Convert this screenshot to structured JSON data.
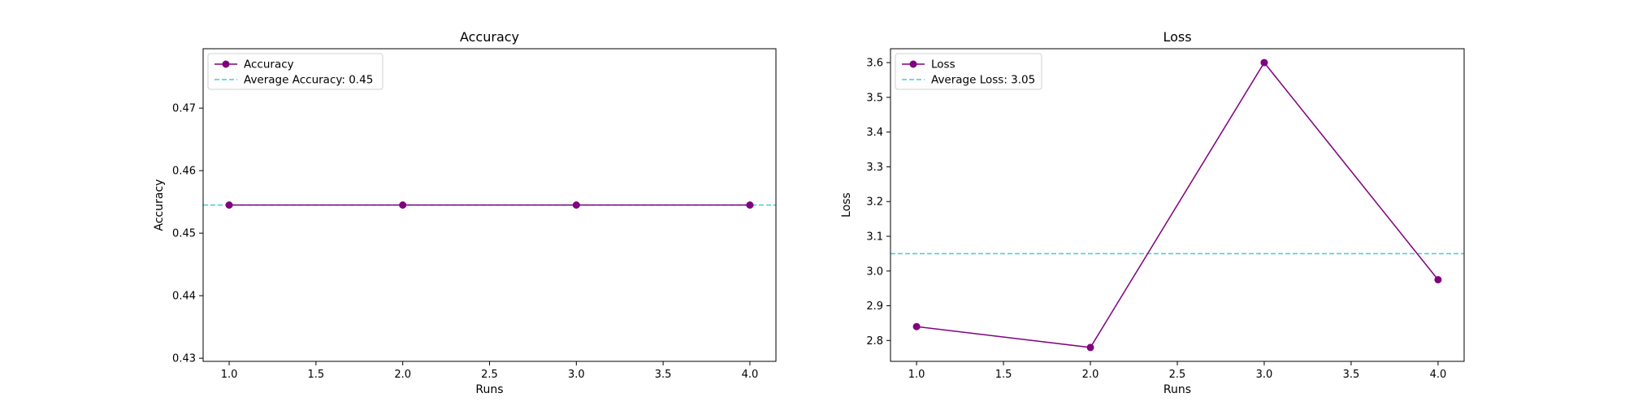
{
  "chart_data": [
    {
      "type": "line",
      "title": "Accuracy",
      "xlabel": "Runs",
      "ylabel": "Accuracy",
      "x": [
        1.0,
        2.0,
        3.0,
        4.0
      ],
      "xlim": [
        0.85,
        4.15
      ],
      "ylim": [
        0.4295,
        0.4795
      ],
      "xticks": [
        "1.0",
        "1.5",
        "2.0",
        "2.5",
        "3.0",
        "3.5",
        "4.0"
      ],
      "yticks": [
        "0.43",
        "0.44",
        "0.45",
        "0.46",
        "0.47"
      ],
      "grid": false,
      "legend_position": "upper-left",
      "series": [
        {
          "name": "Accuracy",
          "values": [
            0.4545,
            0.4545,
            0.4545,
            0.4545
          ],
          "color": "#800080",
          "style": "solid",
          "marker": "circle"
        }
      ],
      "reference_lines": [
        {
          "label": "Average Accuracy: 0.45",
          "value": 0.4545,
          "color": "#40d0d0",
          "style": "dashed"
        }
      ]
    },
    {
      "type": "line",
      "title": "Loss",
      "xlabel": "Runs",
      "ylabel": "Loss",
      "x": [
        1.0,
        2.0,
        3.0,
        4.0
      ],
      "xlim": [
        0.85,
        4.15
      ],
      "ylim": [
        2.74,
        3.64
      ],
      "xticks": [
        "1.0",
        "1.5",
        "2.0",
        "2.5",
        "3.0",
        "3.5",
        "4.0"
      ],
      "yticks": [
        "2.8",
        "2.9",
        "3.0",
        "3.1",
        "3.2",
        "3.3",
        "3.4",
        "3.5",
        "3.6"
      ],
      "grid": false,
      "legend_position": "upper-left",
      "series": [
        {
          "name": "Loss",
          "values": [
            2.84,
            2.78,
            3.6,
            2.975
          ],
          "color": "#800080",
          "style": "solid",
          "marker": "circle"
        }
      ],
      "reference_lines": [
        {
          "label": "Average Loss: 3.05",
          "value": 3.05,
          "color": "#40d0d0",
          "style": "dashed"
        }
      ]
    }
  ]
}
